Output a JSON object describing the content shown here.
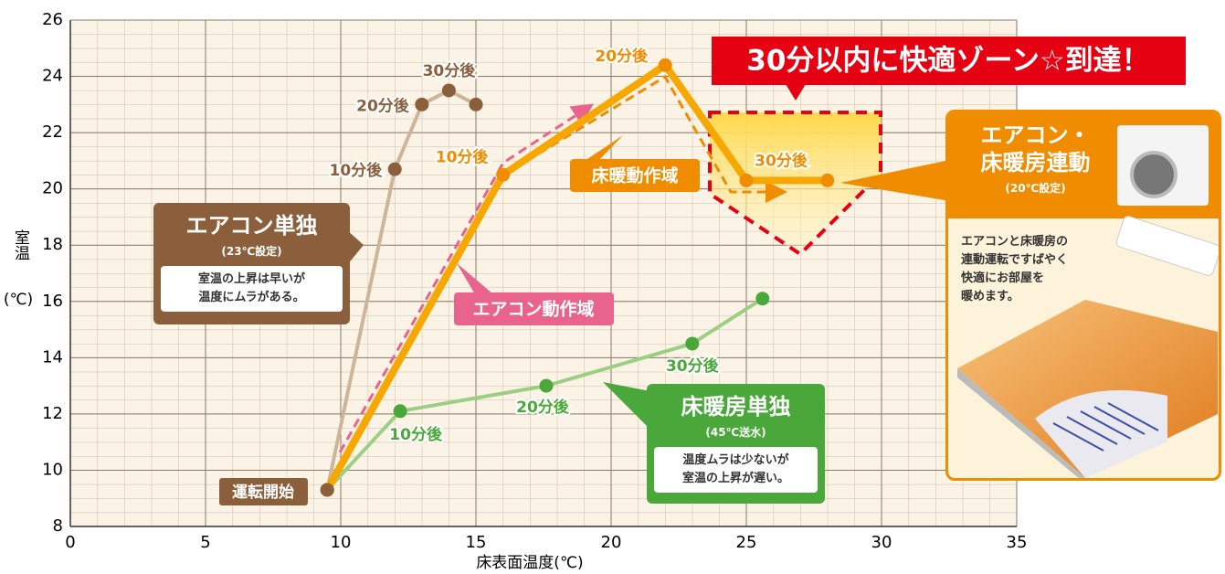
{
  "chart_data": {
    "type": "line",
    "x_label": "床表面温度(℃)",
    "y_label": [
      "室温",
      "(℃)"
    ],
    "xlim": [
      0,
      35
    ],
    "xticks": [
      0,
      5,
      10,
      15,
      20,
      25,
      30,
      35
    ],
    "ylim": [
      8,
      26
    ],
    "yticks": [
      8,
      10,
      12,
      14,
      16,
      18,
      20,
      22,
      24,
      26
    ],
    "grid": true,
    "series": [
      {
        "name": "エアコン単独",
        "setting": "(23℃設定)",
        "note": [
          "室温の上昇は早いが",
          "温度にムラがある。"
        ],
        "color": "#8b5e3c",
        "line_color": "#cdb59a",
        "x": [
          9.5,
          12,
          13,
          14,
          15
        ],
        "values": [
          9.3,
          20.7,
          23,
          23.5,
          23
        ],
        "point_labels": [
          null,
          "10分後",
          "20分後",
          "30分後",
          null
        ]
      },
      {
        "name": "床暖房単独",
        "setting": "(45℃送水)",
        "note": [
          "温度ムラは少ないが",
          "室温の上昇が遅い。"
        ],
        "color": "#4aa83a",
        "line_color": "#9ccf84",
        "x": [
          9.5,
          12.2,
          17.6,
          23,
          25.6
        ],
        "values": [
          9.3,
          12.1,
          13,
          14.5,
          16.1
        ],
        "point_labels": [
          null,
          "10分後",
          "20分後",
          "30分後",
          null
        ]
      },
      {
        "name": "エアコン・床暖房連動",
        "setting": "(20℃設定)",
        "note": [
          "エアコンと床暖房の",
          "連動運転ですばやく",
          "快適にお部屋を",
          "暖めます。"
        ],
        "color": "#f08c00",
        "line_color": "#f7a800",
        "x": [
          9.5,
          16,
          22,
          25,
          28
        ],
        "values": [
          9.3,
          20.5,
          24.4,
          20.3,
          20.3
        ],
        "point_labels": [
          null,
          "10分後",
          "20分後",
          "30分後",
          null
        ]
      }
    ],
    "start_label": "運転開始",
    "banner": "30分以内に快適ゾーン☆到達！",
    "aircon_zone": "エアコン動作域",
    "floor_zone": "床暖動作域"
  }
}
